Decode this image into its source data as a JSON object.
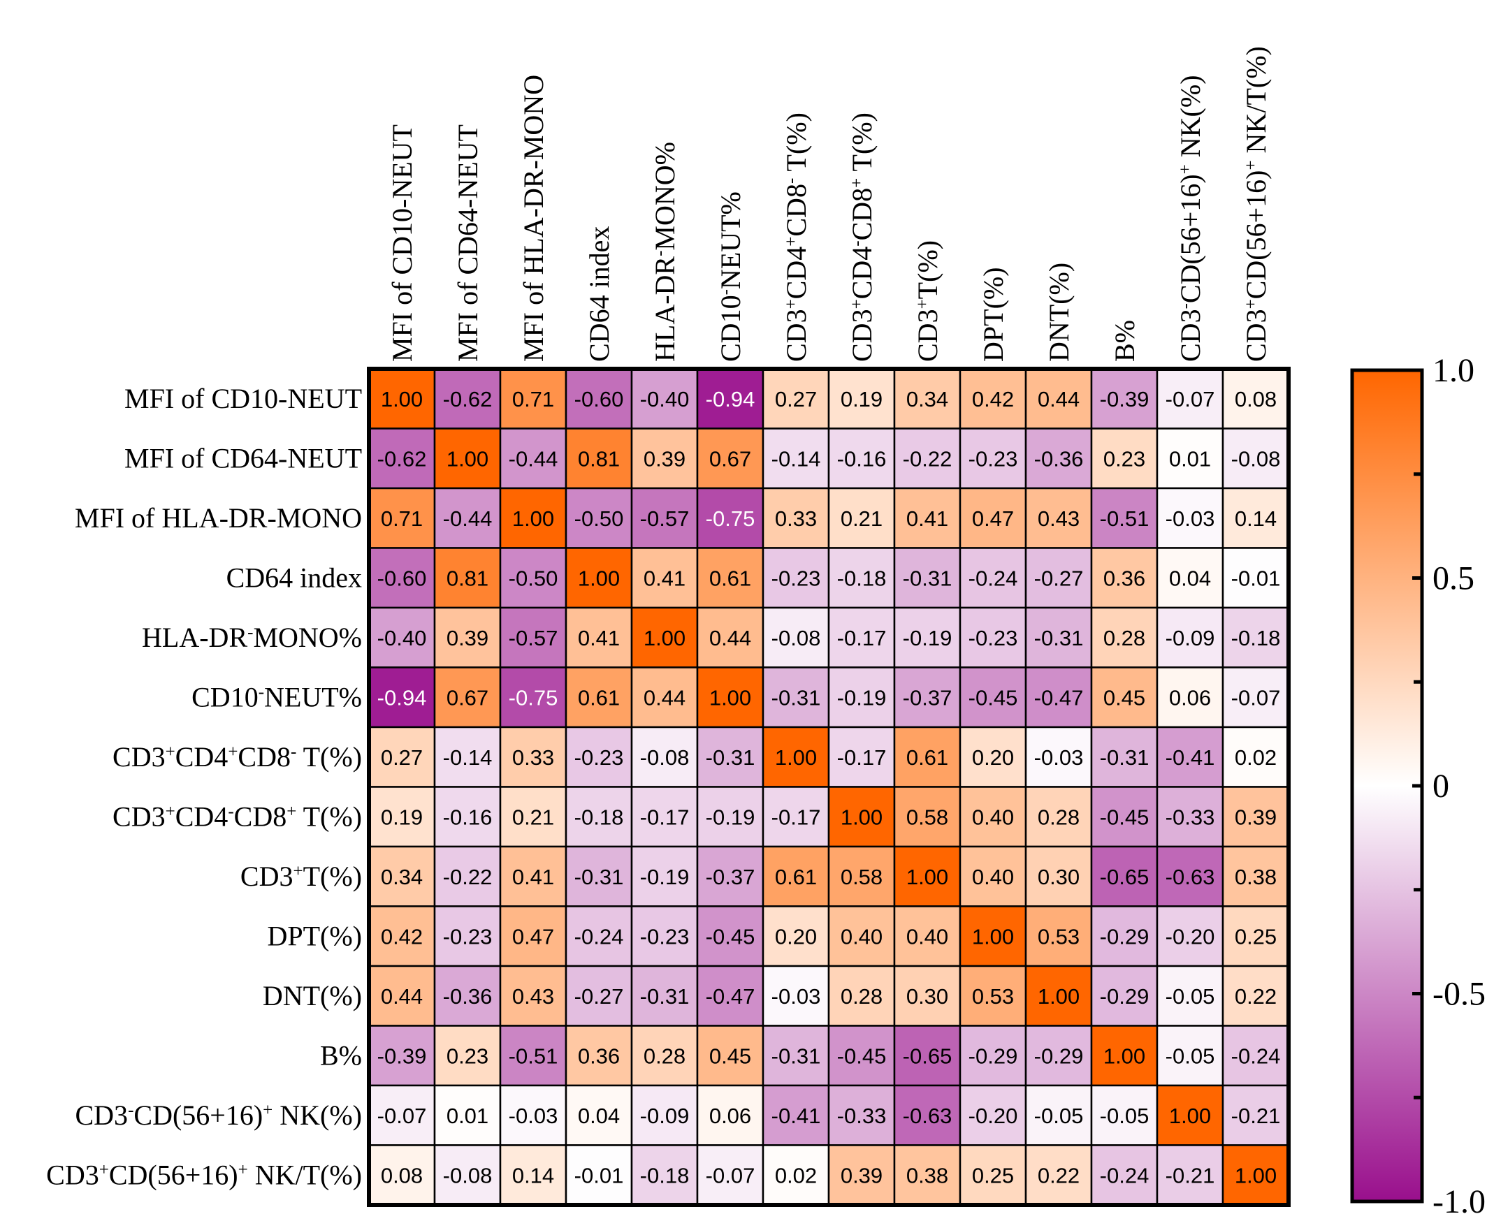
{
  "chart_data": {
    "type": "heatmap",
    "title": "",
    "xlabel": "",
    "ylabel": "",
    "labels": [
      {
        "base": "MFI of CD10-NEUT",
        "parts": [
          [
            "MFI of CD10-NEUT",
            ""
          ]
        ]
      },
      {
        "base": "MFI of CD64-NEUT",
        "parts": [
          [
            "MFI of CD64-NEUT",
            ""
          ]
        ]
      },
      {
        "base": "MFI of HLA-DR-MONO",
        "parts": [
          [
            "MFI of HLA-DR-MONO",
            ""
          ]
        ]
      },
      {
        "base": "CD64 index",
        "parts": [
          [
            "CD64 index",
            ""
          ]
        ]
      },
      {
        "base": "HLA-DR-MONO%",
        "parts": [
          [
            "HLA-DR",
            ""
          ],
          [
            "-",
            "sup"
          ],
          [
            "MONO%",
            ""
          ]
        ]
      },
      {
        "base": "CD10-NEUT%",
        "parts": [
          [
            "CD10",
            ""
          ],
          [
            "-",
            "sup"
          ],
          [
            "NEUT%",
            ""
          ]
        ]
      },
      {
        "base": "CD3+CD4+CD8- T(%)",
        "parts": [
          [
            "CD3",
            ""
          ],
          [
            "+",
            "sup"
          ],
          [
            "CD4",
            ""
          ],
          [
            "+",
            "sup"
          ],
          [
            "CD8",
            ""
          ],
          [
            "-",
            "sup"
          ],
          [
            " T(%)",
            ""
          ]
        ]
      },
      {
        "base": "CD3+CD4-CD8+ T(%)",
        "parts": [
          [
            "CD3",
            ""
          ],
          [
            "+",
            "sup"
          ],
          [
            "CD4",
            ""
          ],
          [
            "-",
            "sup"
          ],
          [
            "CD8",
            ""
          ],
          [
            "+",
            "sup"
          ],
          [
            " T(%)",
            ""
          ]
        ]
      },
      {
        "base": "CD3+T(%)",
        "parts": [
          [
            "CD3",
            ""
          ],
          [
            "+",
            "sup"
          ],
          [
            "T(%)",
            ""
          ]
        ]
      },
      {
        "base": "DPT(%)",
        "parts": [
          [
            "DPT(%)",
            ""
          ]
        ]
      },
      {
        "base": "DNT(%)",
        "parts": [
          [
            "DNT(%)",
            ""
          ]
        ]
      },
      {
        "base": "B%",
        "parts": [
          [
            "B%",
            ""
          ]
        ]
      },
      {
        "base": "CD3-CD(56+16)+ NK(%)",
        "parts": [
          [
            "CD3",
            ""
          ],
          [
            "-",
            "sup"
          ],
          [
            "CD(56+16)",
            ""
          ],
          [
            "+",
            "sup"
          ],
          [
            " NK(%)",
            ""
          ]
        ]
      },
      {
        "base": "CD3+CD(56+16)+ NK/T(%)",
        "parts": [
          [
            "CD3",
            ""
          ],
          [
            "+",
            "sup"
          ],
          [
            "CD(56+16)",
            ""
          ],
          [
            "+",
            "sup"
          ],
          [
            " NK/T(%)",
            ""
          ]
        ]
      }
    ],
    "values": [
      [
        1.0,
        -0.62,
        0.71,
        -0.6,
        -0.4,
        -0.94,
        0.27,
        0.19,
        0.34,
        0.42,
        0.44,
        -0.39,
        -0.07,
        0.08
      ],
      [
        -0.62,
        1.0,
        -0.44,
        0.81,
        0.39,
        0.67,
        -0.14,
        -0.16,
        -0.22,
        -0.23,
        -0.36,
        0.23,
        0.01,
        -0.08
      ],
      [
        0.71,
        -0.44,
        1.0,
        -0.5,
        -0.57,
        -0.75,
        0.33,
        0.21,
        0.41,
        0.47,
        0.43,
        -0.51,
        -0.03,
        0.14
      ],
      [
        -0.6,
        0.81,
        -0.5,
        1.0,
        0.41,
        0.61,
        -0.23,
        -0.18,
        -0.31,
        -0.24,
        -0.27,
        0.36,
        0.04,
        -0.01
      ],
      [
        -0.4,
        0.39,
        -0.57,
        0.41,
        1.0,
        0.44,
        -0.08,
        -0.17,
        -0.19,
        -0.23,
        -0.31,
        0.28,
        -0.09,
        -0.18
      ],
      [
        -0.94,
        0.67,
        -0.75,
        0.61,
        0.44,
        1.0,
        -0.31,
        -0.19,
        -0.37,
        -0.45,
        -0.47,
        0.45,
        0.06,
        -0.07
      ],
      [
        0.27,
        -0.14,
        0.33,
        -0.23,
        -0.08,
        -0.31,
        1.0,
        -0.17,
        0.61,
        0.2,
        -0.03,
        -0.31,
        -0.41,
        0.02
      ],
      [
        0.19,
        -0.16,
        0.21,
        -0.18,
        -0.17,
        -0.19,
        -0.17,
        1.0,
        0.58,
        0.4,
        0.28,
        -0.45,
        -0.33,
        0.39
      ],
      [
        0.34,
        -0.22,
        0.41,
        -0.31,
        -0.19,
        -0.37,
        0.61,
        0.58,
        1.0,
        0.4,
        0.3,
        -0.65,
        -0.63,
        0.38
      ],
      [
        0.42,
        -0.23,
        0.47,
        -0.24,
        -0.23,
        -0.45,
        0.2,
        0.4,
        0.4,
        1.0,
        0.53,
        -0.29,
        -0.2,
        0.25
      ],
      [
        0.44,
        -0.36,
        0.43,
        -0.27,
        -0.31,
        -0.47,
        -0.03,
        0.28,
        0.3,
        0.53,
        1.0,
        -0.29,
        -0.05,
        0.22
      ],
      [
        -0.39,
        0.23,
        -0.51,
        0.36,
        0.28,
        0.45,
        -0.31,
        -0.45,
        -0.65,
        -0.29,
        -0.29,
        1.0,
        -0.05,
        -0.24
      ],
      [
        -0.07,
        0.01,
        -0.03,
        0.04,
        -0.09,
        0.06,
        -0.41,
        -0.33,
        -0.63,
        -0.2,
        -0.05,
        -0.05,
        1.0,
        -0.21
      ],
      [
        0.08,
        -0.08,
        0.14,
        -0.01,
        -0.18,
        -0.07,
        0.02,
        0.39,
        0.38,
        0.25,
        0.22,
        -0.24,
        -0.21,
        1.0
      ]
    ],
    "value_range": [
      -1.0,
      1.0
    ],
    "colorbar": {
      "min": -1.0,
      "max": 1.0,
      "ticks": [
        1.0,
        0.5,
        0,
        -0.5,
        -1.0
      ],
      "tick_labels": [
        "1.0",
        "0.5",
        "0",
        "-0.5",
        "-1.0"
      ],
      "minor_ticks": [
        0.75,
        0.25,
        -0.25,
        -0.75
      ]
    },
    "colors": {
      "negative": "#990f8c",
      "zero": "#ffffff",
      "positive": "#ff6600",
      "border": "#000000"
    }
  }
}
